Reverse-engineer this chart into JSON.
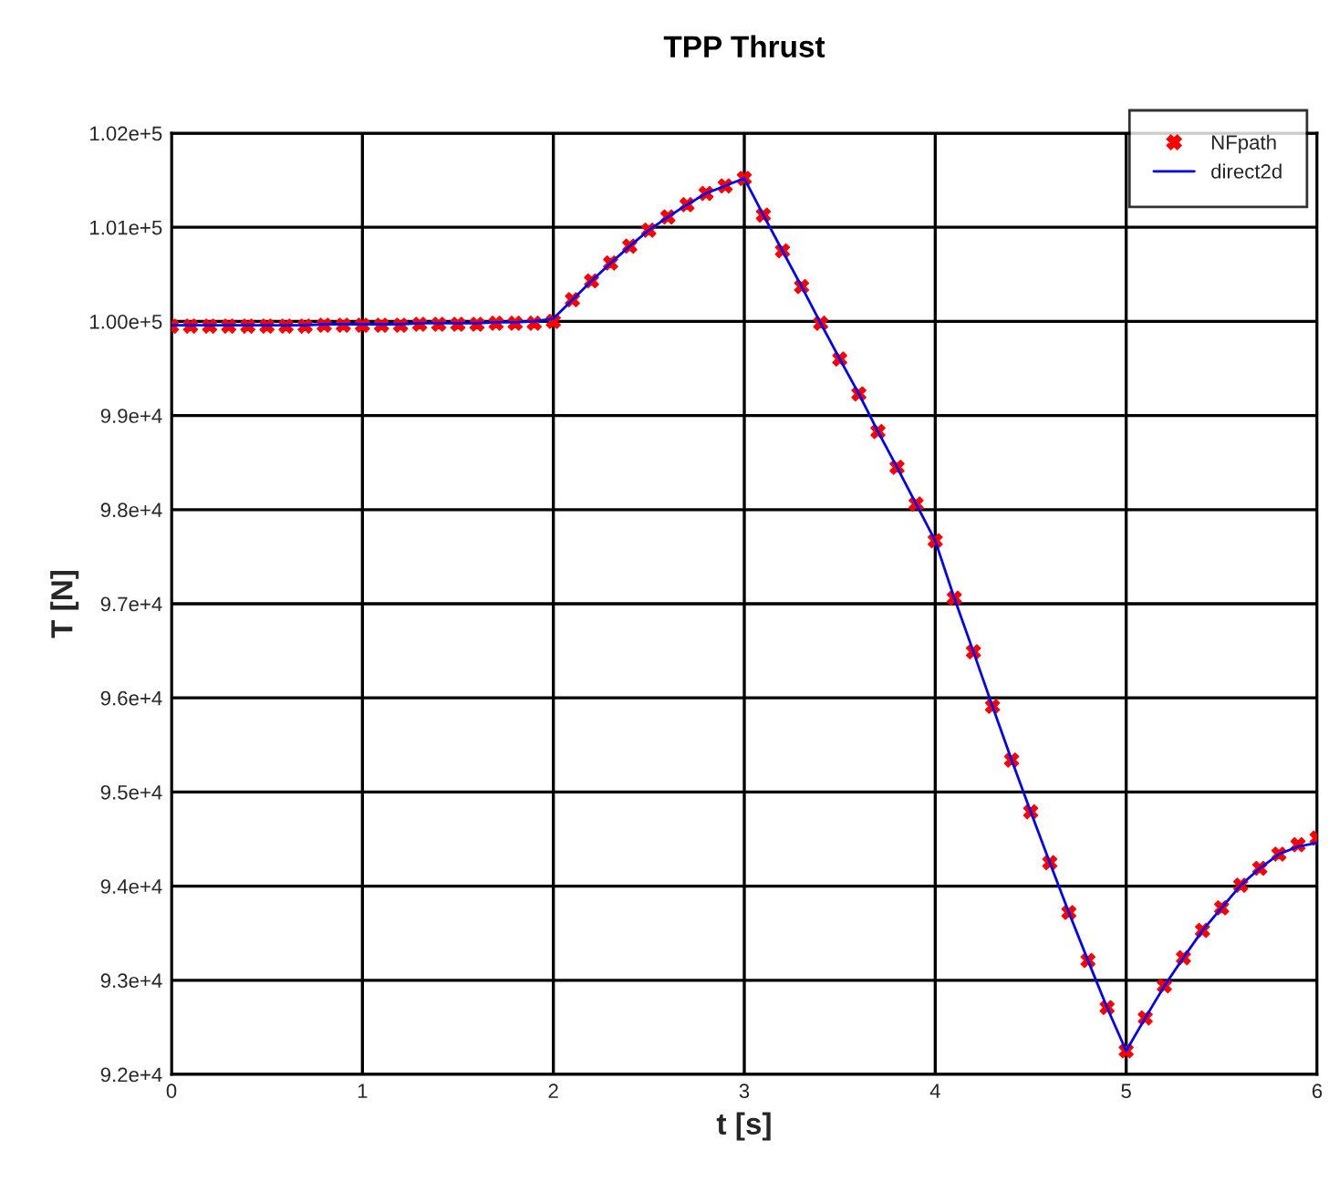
{
  "chart_data": {
    "type": "line",
    "title": "TPP Thrust",
    "xlabel": "t [s]",
    "ylabel": "T [N]",
    "xlim": [
      0,
      6
    ],
    "xticks": [
      0,
      1,
      2,
      3,
      4,
      5,
      6
    ],
    "ylim": [
      92000,
      102000
    ],
    "yticks": [
      {
        "value": 92000,
        "label": "9.2e+4"
      },
      {
        "value": 93000,
        "label": "9.3e+4"
      },
      {
        "value": 94000,
        "label": "9.4e+4"
      },
      {
        "value": 95000,
        "label": "9.5e+4"
      },
      {
        "value": 96000,
        "label": "9.6e+4"
      },
      {
        "value": 97000,
        "label": "9.7e+4"
      },
      {
        "value": 98000,
        "label": "9.8e+4"
      },
      {
        "value": 99000,
        "label": "9.9e+4"
      },
      {
        "value": 100000,
        "label": "1.00e+5"
      },
      {
        "value": 101000,
        "label": "1.01e+5"
      },
      {
        "value": 102000,
        "label": "1.02e+5"
      }
    ],
    "x": [
      0,
      0.1,
      0.2,
      0.3,
      0.4,
      0.5,
      0.6,
      0.7,
      0.8,
      0.9,
      1.0,
      1.1,
      1.2,
      1.3,
      1.4,
      1.5,
      1.6,
      1.7,
      1.8,
      1.9,
      2.0,
      2.1,
      2.2,
      2.3,
      2.4,
      2.5,
      2.6,
      2.7,
      2.8,
      2.9,
      3.0,
      3.1,
      3.2,
      3.3,
      3.4,
      3.5,
      3.6,
      3.7,
      3.8,
      3.9,
      4.0,
      4.1,
      4.2,
      4.3,
      4.4,
      4.5,
      4.6,
      4.7,
      4.8,
      4.9,
      5.0,
      5.1,
      5.2,
      5.3,
      5.4,
      5.5,
      5.6,
      5.7,
      5.8,
      5.9,
      6.0
    ],
    "series": [
      {
        "name": "NFpath",
        "type": "scatter",
        "color": "#ff0000",
        "marker": "cross",
        "values": [
          99950,
          99950,
          99950,
          99950,
          99950,
          99950,
          99950,
          99950,
          99960,
          99960,
          99960,
          99960,
          99960,
          99970,
          99970,
          99970,
          99970,
          99980,
          99980,
          99980,
          100000,
          100230,
          100430,
          100620,
          100800,
          100970,
          101110,
          101240,
          101360,
          101440,
          101520,
          101130,
          100750,
          100370,
          99980,
          99600,
          99230,
          98830,
          98450,
          98060,
          97670,
          97060,
          96490,
          95910,
          95340,
          94790,
          94250,
          93720,
          93210,
          92710,
          92250,
          92600,
          92940,
          93240,
          93530,
          93770,
          94010,
          94190,
          94340,
          94440,
          94510
        ]
      },
      {
        "name": "direct2d",
        "color": "#0000ff",
        "line_style": "solid",
        "values": [
          99960,
          99960,
          99960,
          99960,
          99960,
          99960,
          99960,
          99960,
          99970,
          99970,
          99970,
          99970,
          99970,
          99980,
          99980,
          99980,
          99980,
          99990,
          99990,
          100000,
          100030,
          100230,
          100430,
          100620,
          100800,
          100970,
          101110,
          101240,
          101360,
          101440,
          101520,
          101130,
          100750,
          100370,
          99980,
          99600,
          99230,
          98830,
          98450,
          98060,
          97670,
          97060,
          96490,
          95910,
          95340,
          94790,
          94250,
          93720,
          93210,
          92710,
          92250,
          92600,
          92940,
          93240,
          93530,
          93770,
          94010,
          94190,
          94340,
          94420,
          94460
        ]
      }
    ],
    "grid": true,
    "legend": "top right"
  }
}
